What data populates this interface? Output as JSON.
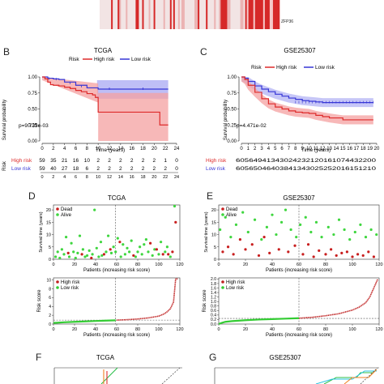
{
  "heatmap": {
    "gene_label": "ZFP36"
  },
  "colors": {
    "high": "#dd2a2a",
    "low": "#3636d6",
    "high_band": "#f4a0a0",
    "low_band": "#b3b3f4",
    "overlap_band": "#a484c6",
    "dead": "#c81e1e",
    "alive": "#3fd63f",
    "risk_high_line": "#bf2020",
    "risk_low_line": "#33cc33",
    "heat_red": "#d62828",
    "heat_light": "#f2e4e4",
    "roc_green": "#2bbf4a",
    "roc_orange": "#f08020",
    "roc_cyan": "#2ac4e0",
    "roc_blue": "#2d6fd8",
    "roc_red": "#e03030"
  },
  "panels": {
    "B": "B",
    "C": "C",
    "D": "D",
    "E": "E",
    "F": "F",
    "G": "G"
  },
  "surv_tcga": {
    "title": "TCGA",
    "legend_title": "Risk",
    "high_label": "High risk",
    "low_label": "Low risk",
    "pvalue": "p=9.733e-03",
    "ylabel": "Survival probability",
    "xlabel": "Time (years)",
    "y_ticks": [
      "0.00",
      "0.25",
      "0.50",
      "0.75",
      "1.00"
    ],
    "x_ticks": [
      "0",
      "2",
      "4",
      "6",
      "8",
      "10",
      "12",
      "14",
      "16",
      "18",
      "20",
      "22",
      "24"
    ],
    "xlim": [
      0,
      24
    ],
    "ylim": [
      0,
      1
    ]
  },
  "surv_gse": {
    "title": "GSE25307",
    "legend_title": "Risk",
    "high_label": "High risk",
    "low_label": "Low risk",
    "pvalue": "p=4.471e-02",
    "ylabel": "Survival probability",
    "xlabel": "Time (years)",
    "y_ticks": [
      "0.00",
      "0.25",
      "0.50",
      "0.75",
      "1.00"
    ],
    "x_ticks": [
      "0",
      "1",
      "2",
      "3",
      "4",
      "5",
      "6",
      "7",
      "8",
      "9",
      "10",
      "11",
      "12",
      "13",
      "14",
      "15",
      "16",
      "17",
      "18",
      "19",
      "20"
    ],
    "xlim": [
      0,
      20
    ],
    "ylim": [
      0,
      1
    ]
  },
  "risk_table_tcga": {
    "axis_label": "Risk",
    "xlabel": "Time (years)",
    "high_label": "High risk",
    "low_label": "Low risk",
    "high_counts": [
      "59",
      "35",
      "21",
      "16",
      "10",
      "2",
      "2",
      "2",
      "2",
      "2",
      "2",
      "1",
      "0"
    ],
    "low_counts": [
      "59",
      "40",
      "27",
      "18",
      "6",
      "2",
      "2",
      "2",
      "2",
      "2",
      "2",
      "2",
      "0"
    ],
    "x_ticks": [
      "0",
      "2",
      "4",
      "6",
      "8",
      "10",
      "12",
      "14",
      "16",
      "18",
      "20",
      "22",
      "24"
    ]
  },
  "risk_table_gse": {
    "axis_label": "Risk",
    "xlabel": "Time (years)",
    "high_label": "High risk",
    "low_label": "Low risk",
    "high_counts_text": "60564941343024232120161074432200",
    "low_counts_text": "60565046403841343025252016151210"
  },
  "scatter_tcga": {
    "title": "TCGA",
    "dead_label": "Dead",
    "alive_label": "Alive",
    "ylabel": "Survival time (years)",
    "xlabel": "Patients (increasing risk score)",
    "y_ticks": [
      "0",
      "5",
      "10",
      "15",
      "20"
    ],
    "x_ticks": [
      "0",
      "20",
      "40",
      "60",
      "80",
      "100",
      "120"
    ],
    "xlim": [
      0,
      120
    ],
    "ylim": [
      0,
      22
    ],
    "cutoff": 59
  },
  "scatter_gse": {
    "title": "GSE25307",
    "dead_label": "Dead",
    "alive_label": "Alive",
    "ylabel": "Survival time (years)",
    "xlabel": "Patients (increasing risk score)",
    "y_ticks": [
      "0",
      "5",
      "10",
      "15",
      "20"
    ],
    "x_ticks": [
      "0",
      "20",
      "40",
      "60",
      "80",
      "100",
      "120"
    ],
    "xlim": [
      0,
      120
    ],
    "ylim": [
      0,
      22
    ],
    "cutoff": 60
  },
  "riskcurve_tcga": {
    "high_label": "High risk",
    "low_label": "Low risk",
    "ylabel": "Risk score",
    "xlabel": "Patients (increasing risk score)",
    "y_ticks": [
      "0",
      "2",
      "4",
      "6",
      "8",
      "10"
    ],
    "x_ticks": [
      "0",
      "20",
      "40",
      "60",
      "80",
      "100",
      "120"
    ],
    "xlim": [
      0,
      120
    ],
    "ylim": [
      0,
      10.5
    ],
    "cutoff_x": 59,
    "cutoff_y": 0.9
  },
  "riskcurve_gse": {
    "high_label": "High risk",
    "low_label": "Low risk",
    "ylabel": "Risk score",
    "xlabel": "Patients (increasing risk score)",
    "y_ticks": [
      "0.0",
      "0.2",
      "0.4",
      "0.6",
      "0.8",
      "1.0",
      "1.2",
      "1.4",
      "1.6",
      "1.8",
      "2.0"
    ],
    "x_ticks": [
      "0",
      "20",
      "40",
      "60",
      "80",
      "100",
      "120"
    ],
    "xlim": [
      0,
      120
    ],
    "ylim": [
      0,
      2.05
    ],
    "cutoff_x": 60,
    "cutoff_y": 0.25
  },
  "roc_tcga": {
    "title": "TCGA"
  },
  "roc_gse": {
    "title": "GSE25307"
  },
  "chart_data": [
    {
      "type": "line",
      "title": "TCGA",
      "xlabel": "Time (years)",
      "ylabel": "Survival probability",
      "xlim": [
        0,
        24
      ],
      "ylim": [
        0,
        1
      ],
      "series": [
        {
          "name": "High risk",
          "x": [
            0,
            0.5,
            1,
            1.5,
            2,
            3,
            4,
            5,
            6,
            7,
            8,
            9,
            9.5,
            10,
            20,
            21,
            22.5
          ],
          "y": [
            1,
            0.97,
            0.92,
            0.88,
            0.87,
            0.86,
            0.84,
            0.82,
            0.79,
            0.77,
            0.74,
            0.72,
            0.68,
            0.45,
            0.45,
            0.25,
            0.25
          ]
        },
        {
          "name": "Low risk",
          "x": [
            0,
            1,
            2,
            3,
            4,
            6,
            8,
            10,
            12,
            16,
            20,
            22.5
          ],
          "y": [
            1,
            0.98,
            0.97,
            0.96,
            0.92,
            0.87,
            0.83,
            0.81,
            0.81,
            0.81,
            0.81,
            0.81
          ]
        }
      ]
    },
    {
      "type": "line",
      "title": "GSE25307",
      "xlabel": "Time (years)",
      "ylabel": "Survival probability",
      "xlim": [
        0,
        20
      ],
      "ylim": [
        0,
        1
      ],
      "series": [
        {
          "name": "High risk",
          "x": [
            0,
            0.5,
            1,
            2,
            3,
            4,
            5,
            6,
            7,
            8,
            9,
            10,
            11,
            12,
            13,
            15,
            17,
            19.5
          ],
          "y": [
            1,
            0.96,
            0.87,
            0.76,
            0.66,
            0.58,
            0.53,
            0.5,
            0.47,
            0.45,
            0.44,
            0.43,
            0.4,
            0.38,
            0.36,
            0.33,
            0.33,
            0.33
          ]
        },
        {
          "name": "Low risk",
          "x": [
            0,
            0.5,
            1,
            2,
            3,
            4,
            5,
            6,
            7,
            8,
            9,
            10,
            11,
            12,
            13,
            15,
            17,
            19.5
          ],
          "y": [
            1,
            0.98,
            0.93,
            0.86,
            0.81,
            0.77,
            0.73,
            0.7,
            0.67,
            0.65,
            0.63,
            0.62,
            0.61,
            0.6,
            0.6,
            0.6,
            0.6,
            0.6
          ]
        }
      ]
    },
    {
      "type": "scatter",
      "title": "TCGA",
      "xlabel": "Patients (increasing risk score)",
      "ylabel": "Survival time (years)",
      "xlim": [
        0,
        120
      ],
      "ylim": [
        0,
        22
      ],
      "series": [
        {
          "name": "Dead",
          "x": [
            14,
            27,
            36,
            48,
            54,
            63,
            76,
            92,
            98,
            104,
            109,
            113,
            116
          ],
          "y": [
            2.5,
            2,
            0.5,
            2,
            4,
            7,
            1.5,
            6.5,
            4,
            2,
            2,
            3,
            15
          ]
        },
        {
          "name": "Alive",
          "x": [
            2,
            4,
            6,
            8,
            10,
            12,
            15,
            17,
            19,
            21,
            23,
            25,
            28,
            30,
            32,
            34,
            37,
            39,
            41,
            43,
            45,
            46,
            50,
            52,
            55,
            57,
            59,
            61,
            64,
            66,
            68,
            70,
            72,
            74,
            78,
            80,
            82,
            84,
            86,
            88,
            90,
            94,
            96,
            100,
            102,
            106,
            108,
            111,
            115
          ],
          "y": [
            1,
            3,
            0.5,
            4,
            2,
            9,
            1,
            6.5,
            3,
            0.5,
            2.5,
            9.5,
            4,
            1,
            1.5,
            3.5,
            2,
            20,
            4.5,
            1,
            7,
            1.5,
            3,
            9.5,
            2.5,
            5,
            3,
            8.5,
            1,
            6,
            2,
            4.5,
            3,
            7.5,
            1,
            3,
            5,
            2,
            6,
            8,
            3,
            1.5,
            4,
            2,
            7,
            3,
            5,
            1,
            21.5
          ]
        }
      ]
    },
    {
      "type": "scatter",
      "title": "GSE25307",
      "xlabel": "Patients (increasing risk score)",
      "ylabel": "Survival time (years)",
      "xlim": [
        0,
        120
      ],
      "ylim": [
        0,
        22
      ],
      "series": [
        {
          "name": "Dead",
          "x": [
            3,
            7,
            11,
            16,
            20,
            25,
            30,
            34,
            38,
            45,
            52,
            57,
            63,
            67,
            71,
            75,
            80,
            84,
            88,
            92,
            96,
            100,
            104,
            108,
            112,
            116
          ],
          "y": [
            3,
            5,
            2,
            8,
            4,
            6,
            1.5,
            9,
            2.5,
            4,
            3,
            5.5,
            2,
            6,
            1,
            3.5,
            2,
            4,
            1.5,
            2.5,
            3,
            1,
            2,
            1.5,
            3,
            1
          ]
        },
        {
          "name": "Alive",
          "x": [
            1,
            5,
            9,
            13,
            18,
            22,
            27,
            32,
            36,
            40,
            43,
            47,
            50,
            54,
            58,
            61,
            65,
            69,
            73,
            77,
            82,
            86,
            90,
            94,
            98,
            102,
            106,
            110,
            114,
            118
          ],
          "y": [
            12,
            17,
            9,
            14,
            19,
            11,
            16,
            8,
            13,
            18,
            10,
            15,
            20,
            12,
            9,
            14,
            17,
            11,
            15,
            9,
            13,
            10,
            16,
            12,
            8,
            11,
            14,
            9,
            12,
            10
          ]
        }
      ]
    },
    {
      "type": "line",
      "title": "",
      "xlabel": "Patients (increasing risk score)",
      "ylabel": "Risk score",
      "xlim": [
        0,
        120
      ],
      "ylim": [
        0,
        10.5
      ],
      "series": [
        {
          "name": "Low risk",
          "x": [
            0,
            10,
            20,
            30,
            40,
            50,
            59
          ],
          "y": [
            0.25,
            0.4,
            0.5,
            0.6,
            0.7,
            0.78,
            0.85
          ]
        },
        {
          "name": "High risk",
          "x": [
            60,
            70,
            80,
            90,
            100,
            105,
            108,
            111,
            114,
            116,
            118
          ],
          "y": [
            0.9,
            1.0,
            1.15,
            1.4,
            1.8,
            2.3,
            2.8,
            3.5,
            5.0,
            10.2,
            10.3
          ]
        }
      ]
    },
    {
      "type": "line",
      "title": "",
      "xlabel": "Patients (increasing risk score)",
      "ylabel": "Risk score",
      "xlim": [
        0,
        120
      ],
      "ylim": [
        0,
        2.05
      ],
      "series": [
        {
          "name": "Low risk",
          "x": [
            0,
            2,
            5,
            10,
            20,
            30,
            40,
            50,
            60
          ],
          "y": [
            0.0,
            0.05,
            0.1,
            0.13,
            0.17,
            0.2,
            0.22,
            0.24,
            0.26
          ]
        },
        {
          "name": "High risk",
          "x": [
            60,
            70,
            80,
            90,
            100,
            105,
            110,
            113,
            116,
            119
          ],
          "y": [
            0.26,
            0.3,
            0.37,
            0.46,
            0.62,
            0.75,
            0.95,
            1.2,
            1.6,
            2.0
          ]
        }
      ]
    }
  ]
}
